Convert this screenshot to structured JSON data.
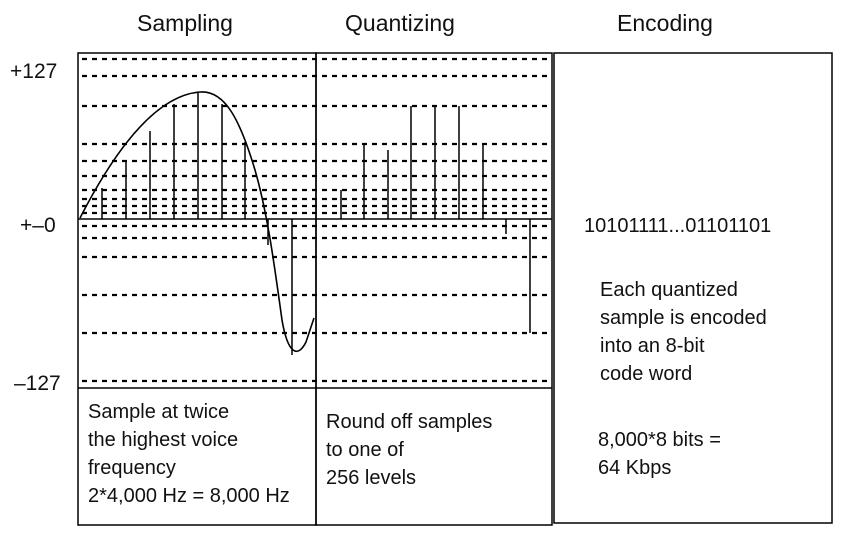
{
  "headers": {
    "sampling": "Sampling",
    "quantizing": "Quantizing",
    "encoding": "Encoding"
  },
  "axis": {
    "top": "+127",
    "zero": "+–0",
    "bottom": "–127"
  },
  "sampling_caption": [
    "Sample at twice",
    "the highest voice",
    "frequency",
    "2*4,000 Hz = 8,000 Hz"
  ],
  "quantizing_caption": [
    "Round off samples",
    "to one of",
    "256 levels"
  ],
  "encoding": {
    "bits": "10101111...01101101",
    "description": [
      "Each quantized",
      "sample is encoded",
      "into an 8-bit",
      "code word"
    ],
    "rate": [
      "8,000*8 bits =",
      "64 Kbps"
    ]
  }
}
